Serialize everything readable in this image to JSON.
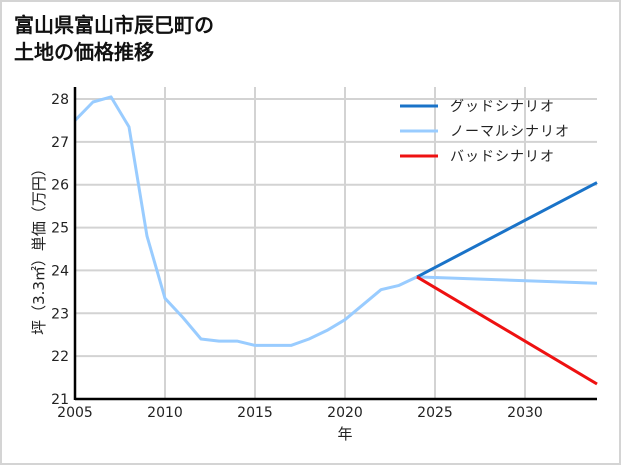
{
  "title": "富山県富山市辰巳町の\n土地の価格推移",
  "chart_data": {
    "type": "line",
    "title": "富山県富山市辰巳町の土地の価格推移",
    "xlabel": "年",
    "ylabel": "坪（3.3㎡）単価（万円）",
    "xlim": [
      2005,
      2034
    ],
    "ylim": [
      21,
      28.2
    ],
    "xticks": [
      2005,
      2010,
      2015,
      2020,
      2025,
      2030
    ],
    "yticks": [
      21,
      22,
      23,
      24,
      25,
      26,
      27,
      28
    ],
    "grid": true,
    "legend_position": "upper right",
    "series": [
      {
        "name": "グッドシナリオ",
        "color": "#1a73c8",
        "x": [
          2024,
          2034
        ],
        "values": [
          23.85,
          26.05
        ]
      },
      {
        "name": "ノーマルシナリオ",
        "color": "#99ccff",
        "x": [
          2005,
          2006,
          2007,
          2008,
          2009,
          2010,
          2011,
          2012,
          2013,
          2014,
          2015,
          2016,
          2017,
          2018,
          2019,
          2020,
          2021,
          2022,
          2023,
          2024,
          2034
        ],
        "values": [
          27.5,
          27.93,
          28.05,
          27.35,
          24.8,
          23.35,
          22.9,
          22.4,
          22.35,
          22.35,
          22.25,
          22.25,
          22.25,
          22.4,
          22.6,
          22.85,
          23.2,
          23.55,
          23.65,
          23.85,
          23.7
        ]
      },
      {
        "name": "バッドシナリオ",
        "color": "#ee1111",
        "x": [
          2024,
          2034
        ],
        "values": [
          23.85,
          21.35
        ]
      }
    ]
  }
}
